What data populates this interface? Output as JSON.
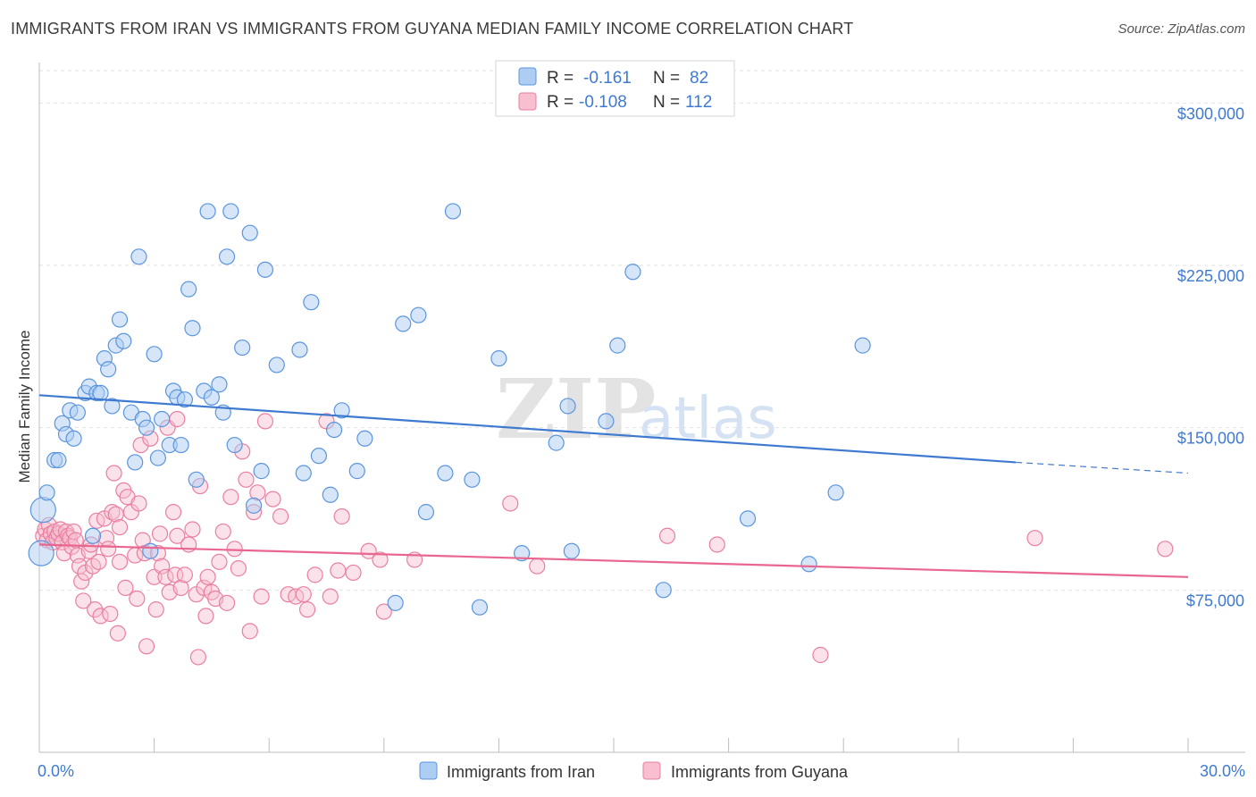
{
  "header": {
    "title": "IMMIGRANTS FROM IRAN VS IMMIGRANTS FROM GUYANA MEDIAN FAMILY INCOME CORRELATION CHART",
    "source": "Source: ZipAtlas.com"
  },
  "legend": {
    "r_label": "R =",
    "n_label": "N =",
    "iran": {
      "r": "-0.161",
      "n": "82"
    },
    "guyana": {
      "r": "-0.108",
      "n": "112"
    }
  },
  "watermark": {
    "zip": "ZIP",
    "atlas": "atlas"
  },
  "colors": {
    "iran_fill": "#aecdf2",
    "iran_stroke": "#5b95dd",
    "iran_line": "#3f7ad1",
    "guyana_fill": "#f7bfd0",
    "guyana_stroke": "#ea7fa0",
    "guyana_line": "#e8668f",
    "axis_text": "#3f7ad1",
    "grid": "#e2e2e2"
  },
  "chart_data": {
    "type": "scatter",
    "title": "IMMIGRANTS FROM IRAN VS IMMIGRANTS FROM GUYANA MEDIAN FAMILY INCOME CORRELATION CHART",
    "xlabel": "",
    "ylabel": "Median Family Income",
    "xlim": [
      0,
      30
    ],
    "ylim": [
      0,
      315000
    ],
    "x_tick_labels": [
      "0.0%",
      "30.0%"
    ],
    "y_ticks": [
      75000,
      150000,
      225000,
      300000
    ],
    "y_tick_labels": [
      "$75,000",
      "$150,000",
      "$225,000",
      "$300,000"
    ],
    "grid": true,
    "legend_position": "top-center",
    "series": [
      {
        "name": "Immigrants from Iran",
        "r": -0.161,
        "n": 82,
        "trend": {
          "x0": 0,
          "y0": 165000,
          "x1": 25.5,
          "y1": 134000,
          "dashed_to_x": 30,
          "dashed_to_y": 129000
        },
        "points": [
          [
            0.1,
            112000
          ],
          [
            0.2,
            120000
          ],
          [
            0.4,
            135000
          ],
          [
            0.5,
            135000
          ],
          [
            0.6,
            152000
          ],
          [
            0.7,
            147000
          ],
          [
            0.8,
            158000
          ],
          [
            0.9,
            145000
          ],
          [
            1.0,
            157000
          ],
          [
            1.2,
            166000
          ],
          [
            1.3,
            169000
          ],
          [
            1.4,
            100000
          ],
          [
            1.5,
            166000
          ],
          [
            1.6,
            166000
          ],
          [
            1.7,
            182000
          ],
          [
            1.8,
            177000
          ],
          [
            1.9,
            160000
          ],
          [
            2.0,
            188000
          ],
          [
            2.1,
            200000
          ],
          [
            2.2,
            190000
          ],
          [
            2.4,
            157000
          ],
          [
            2.5,
            134000
          ],
          [
            2.6,
            229000
          ],
          [
            2.7,
            154000
          ],
          [
            2.8,
            150000
          ],
          [
            2.9,
            93000
          ],
          [
            3.0,
            184000
          ],
          [
            3.1,
            136000
          ],
          [
            3.2,
            154000
          ],
          [
            3.4,
            142000
          ],
          [
            3.5,
            167000
          ],
          [
            3.6,
            164000
          ],
          [
            3.7,
            142000
          ],
          [
            3.8,
            163000
          ],
          [
            3.9,
            214000
          ],
          [
            4.0,
            196000
          ],
          [
            4.1,
            126000
          ],
          [
            4.3,
            167000
          ],
          [
            4.4,
            250000
          ],
          [
            4.5,
            164000
          ],
          [
            4.7,
            170000
          ],
          [
            4.8,
            157000
          ],
          [
            4.9,
            229000
          ],
          [
            5.0,
            250000
          ],
          [
            5.1,
            142000
          ],
          [
            5.3,
            187000
          ],
          [
            5.5,
            240000
          ],
          [
            5.6,
            114000
          ],
          [
            5.8,
            130000
          ],
          [
            5.9,
            223000
          ],
          [
            6.2,
            179000
          ],
          [
            6.8,
            186000
          ],
          [
            6.9,
            129000
          ],
          [
            7.1,
            208000
          ],
          [
            7.3,
            137000
          ],
          [
            7.6,
            119000
          ],
          [
            7.7,
            149000
          ],
          [
            7.9,
            158000
          ],
          [
            8.3,
            130000
          ],
          [
            8.5,
            145000
          ],
          [
            9.3,
            69000
          ],
          [
            9.5,
            198000
          ],
          [
            9.9,
            202000
          ],
          [
            10.1,
            111000
          ],
          [
            10.6,
            129000
          ],
          [
            10.8,
            250000
          ],
          [
            11.3,
            126000
          ],
          [
            11.5,
            67000
          ],
          [
            12.0,
            182000
          ],
          [
            12.6,
            92000
          ],
          [
            13.5,
            143000
          ],
          [
            13.8,
            160000
          ],
          [
            13.9,
            93000
          ],
          [
            14.8,
            153000
          ],
          [
            15.1,
            188000
          ],
          [
            15.5,
            222000
          ],
          [
            16.3,
            75000
          ],
          [
            18.5,
            108000
          ],
          [
            20.1,
            87000
          ],
          [
            20.8,
            120000
          ],
          [
            21.5,
            188000
          ],
          [
            0.05,
            92000
          ]
        ]
      },
      {
        "name": "Immigrants from Guyana",
        "r": -0.108,
        "n": 112,
        "trend": {
          "x0": 0,
          "y0": 96000,
          "x1": 30,
          "y1": 81000
        },
        "points": [
          [
            0.1,
            100000
          ],
          [
            0.15,
            103000
          ],
          [
            0.2,
            98000
          ],
          [
            0.25,
            105000
          ],
          [
            0.3,
            101000
          ],
          [
            0.35,
            97000
          ],
          [
            0.4,
            102000
          ],
          [
            0.45,
            99000
          ],
          [
            0.5,
            101000
          ],
          [
            0.55,
            103000
          ],
          [
            0.6,
            97000
          ],
          [
            0.65,
            92000
          ],
          [
            0.7,
            102000
          ],
          [
            0.75,
            100000
          ],
          [
            0.8,
            99000
          ],
          [
            0.85,
            95000
          ],
          [
            0.9,
            102000
          ],
          [
            0.95,
            98000
          ],
          [
            1.0,
            91000
          ],
          [
            1.05,
            86000
          ],
          [
            1.1,
            79000
          ],
          [
            1.15,
            70000
          ],
          [
            1.2,
            83000
          ],
          [
            1.3,
            93000
          ],
          [
            1.35,
            96000
          ],
          [
            1.4,
            86000
          ],
          [
            1.45,
            66000
          ],
          [
            1.5,
            107000
          ],
          [
            1.55,
            88000
          ],
          [
            1.6,
            63000
          ],
          [
            1.7,
            108000
          ],
          [
            1.75,
            99000
          ],
          [
            1.8,
            94000
          ],
          [
            1.85,
            64000
          ],
          [
            1.9,
            111000
          ],
          [
            1.95,
            129000
          ],
          [
            2.0,
            110000
          ],
          [
            2.05,
            55000
          ],
          [
            2.1,
            88000
          ],
          [
            2.2,
            121000
          ],
          [
            2.25,
            76000
          ],
          [
            2.3,
            118000
          ],
          [
            2.4,
            111000
          ],
          [
            2.5,
            91000
          ],
          [
            2.55,
            71000
          ],
          [
            2.6,
            115000
          ],
          [
            2.65,
            142000
          ],
          [
            2.7,
            98000
          ],
          [
            2.75,
            92000
          ],
          [
            2.8,
            49000
          ],
          [
            2.9,
            145000
          ],
          [
            3.0,
            81000
          ],
          [
            3.05,
            66000
          ],
          [
            3.1,
            92000
          ],
          [
            3.15,
            101000
          ],
          [
            3.2,
            86000
          ],
          [
            3.3,
            81000
          ],
          [
            3.4,
            74000
          ],
          [
            3.5,
            111000
          ],
          [
            3.55,
            82000
          ],
          [
            3.6,
            100000
          ],
          [
            3.7,
            76000
          ],
          [
            3.8,
            82000
          ],
          [
            3.9,
            96000
          ],
          [
            4.0,
            103000
          ],
          [
            4.1,
            73000
          ],
          [
            4.15,
            44000
          ],
          [
            4.2,
            123000
          ],
          [
            4.3,
            76000
          ],
          [
            4.35,
            63000
          ],
          [
            4.4,
            81000
          ],
          [
            4.5,
            74000
          ],
          [
            4.6,
            71000
          ],
          [
            4.7,
            88000
          ],
          [
            4.8,
            102000
          ],
          [
            4.9,
            69000
          ],
          [
            5.0,
            118000
          ],
          [
            5.1,
            94000
          ],
          [
            5.2,
            85000
          ],
          [
            5.3,
            139000
          ],
          [
            5.4,
            126000
          ],
          [
            5.5,
            56000
          ],
          [
            5.6,
            111000
          ],
          [
            5.7,
            120000
          ],
          [
            5.8,
            72000
          ],
          [
            5.9,
            153000
          ],
          [
            6.1,
            117000
          ],
          [
            6.3,
            109000
          ],
          [
            6.5,
            73000
          ],
          [
            6.7,
            72000
          ],
          [
            6.9,
            73000
          ],
          [
            7.0,
            66000
          ],
          [
            7.2,
            82000
          ],
          [
            7.5,
            153000
          ],
          [
            7.6,
            72000
          ],
          [
            7.8,
            84000
          ],
          [
            7.9,
            109000
          ],
          [
            8.2,
            83000
          ],
          [
            8.6,
            93000
          ],
          [
            8.9,
            89000
          ],
          [
            9.0,
            65000
          ],
          [
            9.8,
            89000
          ],
          [
            12.3,
            115000
          ],
          [
            13.0,
            86000
          ],
          [
            16.4,
            100000
          ],
          [
            17.7,
            96000
          ],
          [
            20.4,
            45000
          ],
          [
            26.0,
            99000
          ],
          [
            29.4,
            94000
          ],
          [
            3.35,
            150000
          ],
          [
            3.6,
            154000
          ],
          [
            2.1,
            104000
          ]
        ]
      }
    ]
  },
  "bottom_legend": {
    "iran_label": "Immigrants from Iran",
    "guyana_label": "Immigrants from Guyana"
  }
}
